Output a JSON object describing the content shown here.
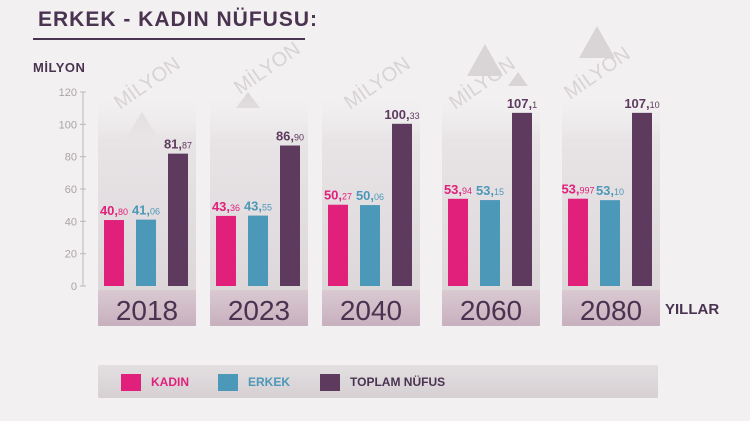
{
  "header": {
    "title": "ERKEK - KADIN  NÜFUSU:",
    "unit_label": "MİLYON",
    "watermark": "MİLYON"
  },
  "chart_data": {
    "type": "bar",
    "title": "ERKEK - KADIN  NÜFUSU:",
    "ylabel": "MİLYON",
    "xlabel": "YILLAR",
    "ylim": [
      0,
      120
    ],
    "yticks": [
      "0",
      "20",
      "40",
      "60",
      "80",
      "100",
      "120"
    ],
    "categories": [
      "2018",
      "2023",
      "2040",
      "2060",
      "2080"
    ],
    "series": [
      {
        "name": "KADIN",
        "color": "#e0207a",
        "values": [
          40.8,
          43.36,
          50.27,
          53.94,
          53.997
        ],
        "labels": [
          [
            "40,",
            "80"
          ],
          [
            "43,",
            "36"
          ],
          [
            "50,",
            "27"
          ],
          [
            "53,",
            "94"
          ],
          [
            "53,",
            "997"
          ]
        ]
      },
      {
        "name": "ERKEK",
        "color": "#4c98b8",
        "values": [
          41.06,
          43.55,
          50.06,
          53.15,
          53.1
        ],
        "labels": [
          [
            "41,",
            "06"
          ],
          [
            "43,",
            "55"
          ],
          [
            "50,",
            "06"
          ],
          [
            "53,",
            "15"
          ],
          [
            "53,",
            "10"
          ]
        ]
      },
      {
        "name": "TOPLAM NÜFUS",
        "color": "#5e3a5f",
        "values": [
          81.87,
          86.9,
          100.33,
          107.1,
          107.1
        ],
        "labels": [
          [
            "81,",
            "87"
          ],
          [
            "86,",
            "90"
          ],
          [
            "100,",
            "33"
          ],
          [
            "107,",
            "1"
          ],
          [
            "107,",
            "10"
          ]
        ]
      }
    ],
    "grid": false,
    "legend_position": "bottom"
  }
}
